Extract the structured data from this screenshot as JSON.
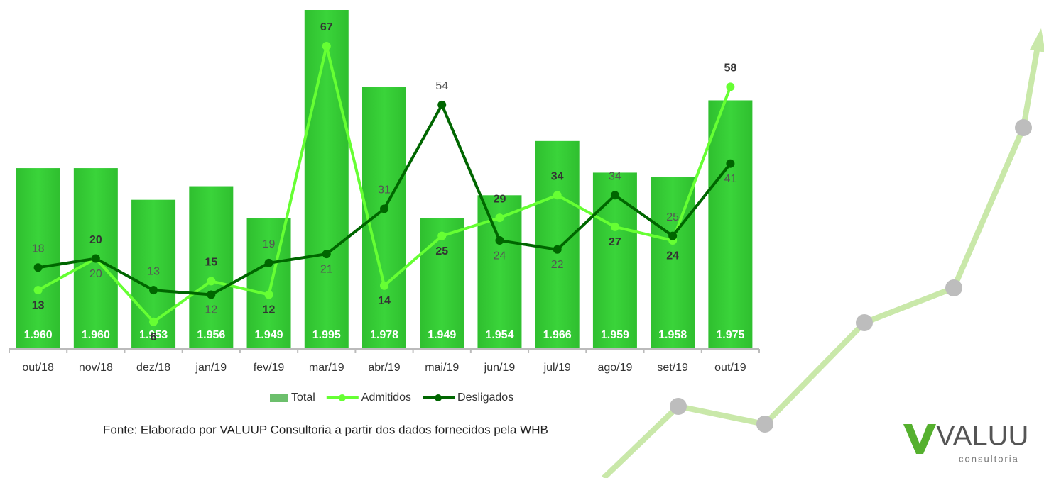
{
  "chart_data": {
    "type": "bar_line",
    "categories": [
      "out/18",
      "nov/18",
      "dez/18",
      "jan/19",
      "fev/19",
      "mar/19",
      "abr/19",
      "mai/19",
      "jun/19",
      "jul/19",
      "ago/19",
      "set/19",
      "out/19"
    ],
    "series": [
      {
        "name": "Total",
        "type": "bar",
        "color": "#33cc33",
        "values": [
          1960,
          1960,
          1953,
          1956,
          1949,
          1995,
          1978,
          1949,
          1954,
          1966,
          1959,
          1958,
          1975
        ],
        "value_labels": [
          "1.960",
          "1.960",
          "1.953",
          "1.956",
          "1.949",
          "1.995",
          "1.978",
          "1.949",
          "1.954",
          "1.966",
          "1.959",
          "1.958",
          "1.975"
        ]
      },
      {
        "name": "Admitidos",
        "type": "line",
        "axis": "y2",
        "color": "#66ff33",
        "values": [
          13,
          20,
          6,
          15,
          12,
          67,
          14,
          25,
          29,
          34,
          27,
          24,
          58
        ]
      },
      {
        "name": "Desligados",
        "type": "line",
        "axis": "y2",
        "color": "#006600",
        "values": [
          18,
          20,
          13,
          12,
          19,
          21,
          31,
          54,
          24,
          22,
          34,
          25,
          41
        ]
      }
    ],
    "ylim": [
      1920,
      1995
    ],
    "y2lim": [
      0,
      75
    ],
    "legend": "bottom",
    "source": "Fonte:  Elaborado por VALUUP Consultoria a partir dos dados fornecidos pela WHB"
  },
  "logo": {
    "name": "VALUU",
    "tagline": "consultoria"
  }
}
